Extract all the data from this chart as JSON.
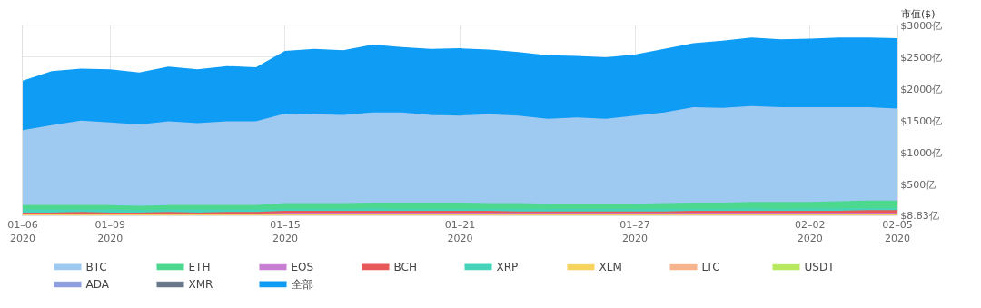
{
  "chart_data": {
    "type": "area",
    "ylabel": "市值($)",
    "x": [
      "2020-01-06",
      "2020-01-07",
      "2020-01-08",
      "2020-01-09",
      "2020-01-10",
      "2020-01-11",
      "2020-01-12",
      "2020-01-13",
      "2020-01-14",
      "2020-01-15",
      "2020-01-16",
      "2020-01-17",
      "2020-01-18",
      "2020-01-19",
      "2020-01-20",
      "2020-01-21",
      "2020-01-22",
      "2020-01-23",
      "2020-01-24",
      "2020-01-25",
      "2020-01-26",
      "2020-01-27",
      "2020-01-28",
      "2020-01-29",
      "2020-01-30",
      "2020-01-31",
      "2020-02-01",
      "2020-02-02",
      "2020-02-03",
      "2020-02-04",
      "2020-02-05"
    ],
    "series": [
      {
        "name": "BTC",
        "color": "#9ec9f0",
        "values": [
          1340,
          1420,
          1490,
          1460,
          1430,
          1480,
          1450,
          1480,
          1480,
          1600,
          1590,
          1580,
          1620,
          1620,
          1580,
          1570,
          1590,
          1570,
          1520,
          1540,
          1520,
          1570,
          1620,
          1700,
          1690,
          1720,
          1700,
          1700,
          1700,
          1700,
          1680
        ]
      },
      {
        "name": "ETH",
        "color": "#4cd88f",
        "values": [
          160,
          160,
          160,
          160,
          150,
          160,
          160,
          160,
          160,
          190,
          190,
          190,
          200,
          200,
          200,
          200,
          190,
          190,
          180,
          180,
          180,
          180,
          190,
          200,
          200,
          210,
          210,
          210,
          220,
          230,
          230
        ]
      },
      {
        "name": "EOS",
        "color": "#c77dd1",
        "values": [
          30,
          30,
          30,
          30,
          30,
          30,
          30,
          30,
          30,
          40,
          40,
          40,
          40,
          40,
          40,
          40,
          40,
          40,
          40,
          40,
          40,
          40,
          40,
          40,
          40,
          40,
          40,
          40,
          40,
          40,
          40
        ]
      },
      {
        "name": "BCH",
        "color": "#e85a5a",
        "values": [
          40,
          40,
          50,
          40,
          40,
          50,
          40,
          50,
          50,
          70,
          70,
          70,
          70,
          70,
          70,
          70,
          70,
          60,
          60,
          60,
          60,
          60,
          60,
          70,
          70,
          70,
          70,
          70,
          70,
          80,
          80
        ]
      },
      {
        "name": "XRP",
        "color": "#45d4b9",
        "values": [
          90,
          90,
          90,
          90,
          80,
          90,
          90,
          90,
          90,
          100,
          100,
          100,
          110,
          100,
          100,
          100,
          100,
          100,
          100,
          100,
          100,
          100,
          100,
          100,
          100,
          110,
          100,
          110,
          110,
          110,
          110
        ]
      },
      {
        "name": "XLM",
        "color": "#f7d35e",
        "values": [
          20,
          20,
          20,
          20,
          20,
          20,
          20,
          20,
          20,
          20,
          20,
          20,
          20,
          20,
          20,
          20,
          20,
          20,
          20,
          20,
          20,
          20,
          20,
          20,
          20,
          20,
          20,
          20,
          20,
          20,
          20
        ]
      },
      {
        "name": "LTC",
        "color": "#f7b38c",
        "values": [
          null,
          null,
          null,
          null,
          null,
          null,
          null,
          null,
          null,
          null,
          null,
          null,
          null,
          null,
          null,
          null,
          null,
          null,
          null,
          null,
          null,
          null,
          null,
          null,
          null,
          null,
          null,
          null,
          null,
          null,
          null
        ]
      },
      {
        "name": "USDT",
        "color": "#b8e85e",
        "values": [
          null,
          null,
          null,
          null,
          null,
          null,
          null,
          null,
          null,
          null,
          null,
          null,
          null,
          null,
          null,
          null,
          null,
          null,
          null,
          null,
          null,
          null,
          null,
          null,
          null,
          null,
          null,
          null,
          null,
          null,
          null
        ]
      },
      {
        "name": "ADA",
        "color": "#8e9fe0",
        "values": [
          null,
          null,
          null,
          null,
          null,
          null,
          null,
          null,
          null,
          null,
          null,
          null,
          null,
          null,
          null,
          null,
          null,
          null,
          null,
          null,
          null,
          null,
          null,
          null,
          null,
          null,
          null,
          null,
          null,
          null,
          null
        ]
      },
      {
        "name": "XMR",
        "color": "#66788a",
        "values": [
          null,
          null,
          null,
          null,
          null,
          null,
          null,
          null,
          null,
          null,
          null,
          null,
          null,
          null,
          null,
          null,
          null,
          null,
          null,
          null,
          null,
          null,
          null,
          null,
          null,
          null,
          null,
          null,
          null,
          null,
          null
        ]
      },
      {
        "name": "全部",
        "color": "#0f9cf5",
        "values": [
          2120,
          2270,
          2310,
          2300,
          2250,
          2340,
          2300,
          2350,
          2330,
          2590,
          2620,
          2600,
          2690,
          2650,
          2620,
          2630,
          2610,
          2570,
          2520,
          2510,
          2490,
          2530,
          2620,
          2710,
          2750,
          2800,
          2770,
          2780,
          2800,
          2800,
          2790
        ]
      }
    ],
    "xlim": [
      "2020-01-06",
      "2020-02-05"
    ],
    "xticks": [
      {
        "value": "2020-01-06",
        "label": "01–06\n2020"
      },
      {
        "value": "2020-01-09",
        "label": "01–09\n2020"
      },
      {
        "value": "2020-01-15",
        "label": "01–15\n2020"
      },
      {
        "value": "2020-01-21",
        "label": "01–21\n2020"
      },
      {
        "value": "2020-01-27",
        "label": "01–27\n2020"
      },
      {
        "value": "2020-02-02",
        "label": "02–02\n2020"
      },
      {
        "value": "2020-02-05",
        "label": "02–05\n2020"
      }
    ],
    "ylim": [
      8.83,
      3000
    ],
    "yticks": [
      {
        "value": 8.83,
        "label": "$8.83亿"
      },
      {
        "value": 500,
        "label": "$500亿"
      },
      {
        "value": 1000,
        "label": "$1000亿"
      },
      {
        "value": 1500,
        "label": "$1500亿"
      },
      {
        "value": 2000,
        "label": "$2000亿"
      },
      {
        "value": 2500,
        "label": "$2500亿"
      },
      {
        "value": 3000,
        "label": "$3000亿"
      }
    ],
    "grid": true,
    "legend": "bottom",
    "marker": "none",
    "line_style": "solid"
  }
}
